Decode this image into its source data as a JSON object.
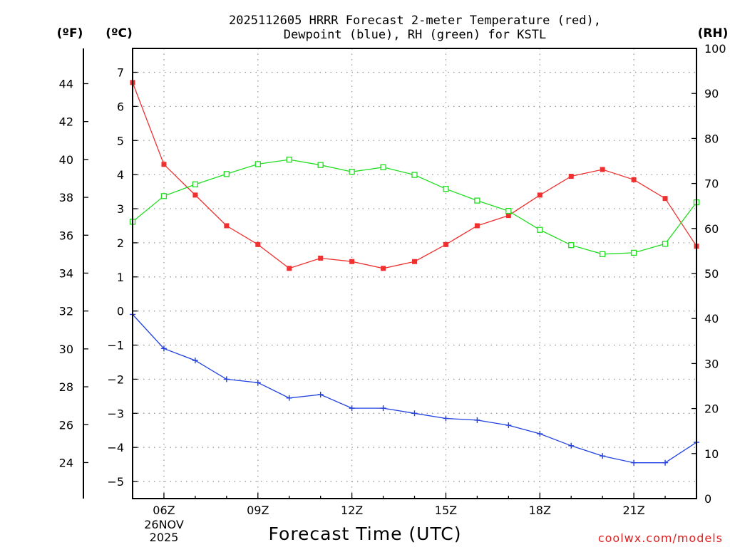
{
  "chart_data": {
    "type": "line",
    "title_line1": "2025112605 HRRR Forecast 2-meter Temperature (red),",
    "title_line2": "Dewpoint (blue), RH (green) for KSTL",
    "xlabel": "Forecast Time (UTC)",
    "credit": "coolwx.com/models",
    "date_labels": [
      "26NOV",
      "2025"
    ],
    "unit_labels": {
      "fahrenheit": "(ºF)",
      "celsius": "(ºC)",
      "rh": "(RH)"
    },
    "hours": [
      5,
      6,
      7,
      8,
      9,
      10,
      11,
      12,
      13,
      14,
      15,
      16,
      17,
      18,
      19,
      20,
      21,
      22,
      23
    ],
    "x_range": [
      5,
      23
    ],
    "x_ticks": [
      {
        "hour": 6,
        "label": "06Z"
      },
      {
        "hour": 9,
        "label": "09Z"
      },
      {
        "hour": 12,
        "label": "12Z"
      },
      {
        "hour": 15,
        "label": "15Z"
      },
      {
        "hour": 18,
        "label": "18Z"
      },
      {
        "hour": 21,
        "label": "21Z"
      }
    ],
    "celsius_range": [
      -5.5,
      7.7
    ],
    "celsius_ticks": [
      -5,
      -4,
      -3,
      -2,
      -1,
      0,
      1,
      2,
      3,
      4,
      5,
      6,
      7
    ],
    "fahrenheit_ticks": [
      24,
      26,
      28,
      30,
      32,
      34,
      36,
      38,
      40,
      42,
      44
    ],
    "rh_range": [
      0,
      100
    ],
    "rh_ticks": [
      0,
      10,
      20,
      30,
      40,
      50,
      60,
      70,
      80,
      90,
      100
    ],
    "grid": true,
    "series": [
      {
        "name": "2-meter Temperature",
        "unit": "°C",
        "color": "#ee3030",
        "marker": "filled-square",
        "values": [
          6.7,
          4.3,
          3.4,
          2.5,
          1.95,
          1.25,
          1.55,
          1.45,
          1.25,
          1.45,
          1.95,
          2.5,
          2.8,
          3.4,
          3.95,
          4.15,
          3.85,
          3.3,
          1.9
        ]
      },
      {
        "name": "Dewpoint",
        "unit": "°C",
        "color": "#2040e0",
        "marker": "plus",
        "values": [
          -0.1,
          -1.1,
          -1.45,
          -2.0,
          -2.1,
          -2.55,
          -2.45,
          -2.85,
          -2.85,
          -3.0,
          -3.15,
          -3.2,
          -3.35,
          -3.6,
          -3.95,
          -4.25,
          -4.45,
          -4.45,
          -3.85
        ]
      },
      {
        "name": "RH",
        "unit": "%",
        "color": "#20dd20",
        "marker": "open-square",
        "values": [
          61.5,
          67.2,
          69.8,
          72.1,
          74.3,
          75.3,
          74.1,
          72.6,
          73.6,
          71.9,
          68.8,
          66.2,
          63.9,
          59.7,
          56.3,
          54.3,
          54.6,
          56.6,
          65.8
        ]
      }
    ]
  }
}
